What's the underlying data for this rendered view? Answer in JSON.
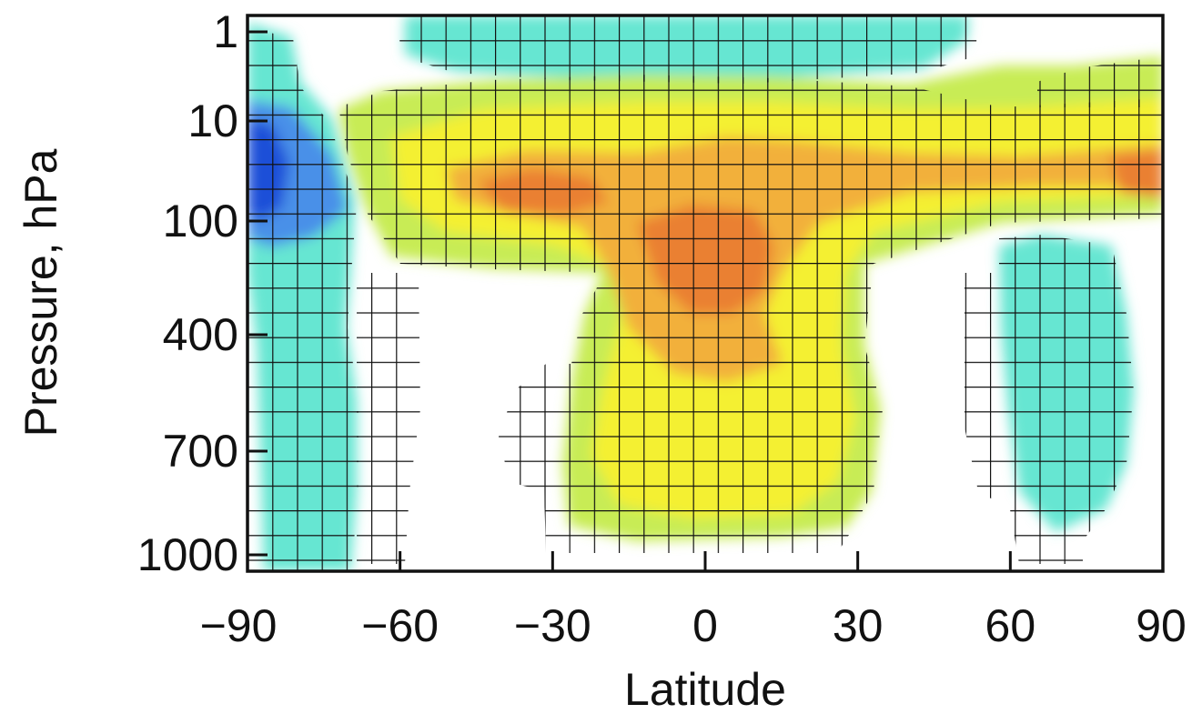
{
  "chart_data": {
    "type": "heatmap",
    "title": "",
    "xlabel": "Latitude",
    "ylabel": "Pressure, hPa",
    "xlim": [
      -90,
      90
    ],
    "ylim": [
      1,
      1000
    ],
    "x_ticks": [
      -90,
      -60,
      -30,
      0,
      30,
      60,
      90
    ],
    "x_tick_labels": [
      "−90",
      "−60",
      "−30",
      "0",
      "30",
      "60",
      "90"
    ],
    "y_ticks": [
      1,
      10,
      100,
      400,
      700,
      1000
    ],
    "y_tick_labels": [
      "1",
      "10",
      "100",
      "400",
      "700",
      "1000"
    ],
    "y_scale": "log",
    "colormap": {
      "dark_blue": "#1e4fd8",
      "blue": "#4a90e8",
      "cyan": "#66e6d2",
      "light_green": "#c8ec55",
      "yellow": "#f4f030",
      "orange": "#f2b03a",
      "dark_orange": "#ea8030"
    },
    "hatching": "cross-hatch marks statistically significant regions",
    "legend": "none"
  }
}
